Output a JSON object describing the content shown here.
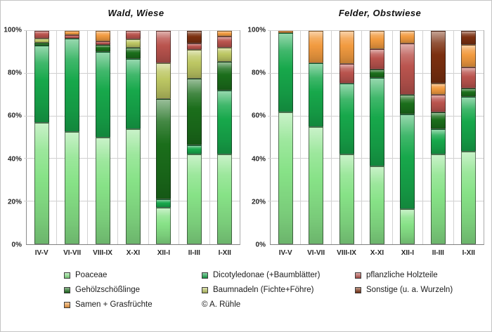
{
  "window": {
    "background": "#ffffff",
    "border_color": "#c4c4c4"
  },
  "colors": {
    "poaceae": "#87E287",
    "dicotyledonae": "#17A84B",
    "gehoelzschoesslinge": "#1B6E1B",
    "baumnadeln": "#BDC763",
    "holzteile": "#BA544E",
    "samen": "#F29B40",
    "sonstige": "#7C3010",
    "gridline": "#cfcfcf",
    "axis": "#8c8c8c",
    "text": "#262626"
  },
  "chart_data": [
    {
      "type": "bar",
      "stacked": true,
      "title": "Wald, Wiese",
      "categories": [
        "IV-V",
        "VI-VII",
        "VIII-IX",
        "X-XI",
        "XII-I",
        "II-III",
        "I-XII"
      ],
      "ylim": [
        0,
        100
      ],
      "yticks": [
        "0%",
        "20%",
        "40%",
        "60%",
        "80%",
        "100%"
      ],
      "grid": true,
      "legend_position": "bottom",
      "series": [
        {
          "name": "Poaceae",
          "color_key": "poaceae",
          "values": [
            57,
            52.5,
            50,
            54,
            17,
            42,
            42
          ]
        },
        {
          "name": "Dicotyledonae (+Baumblätter)",
          "color_key": "dicotyledonae",
          "values": [
            36,
            44,
            40,
            33,
            4,
            4.5,
            30
          ]
        },
        {
          "name": "Gehölzschößlinge",
          "color_key": "gehoelzschoesslinge",
          "values": [
            1.5,
            0,
            3.5,
            5,
            47,
            31,
            13.5
          ]
        },
        {
          "name": "Baumnadeln (Fichte+Föhre)",
          "color_key": "baumnadeln",
          "values": [
            2,
            0,
            0,
            4,
            17,
            13.5,
            6.5
          ]
        },
        {
          "name": "pflanzliche Holzteile",
          "color_key": "holzteile",
          "values": [
            3.5,
            1.5,
            1.5,
            4,
            15,
            3,
            5.5
          ]
        },
        {
          "name": "Samen + Grasfrüchte",
          "color_key": "samen",
          "values": [
            0,
            2,
            5,
            0,
            0,
            0,
            2.5
          ]
        },
        {
          "name": "Sonstige (u. a. Wurzeln)",
          "color_key": "sonstige",
          "values": [
            0,
            0,
            0,
            0,
            0,
            6,
            0
          ]
        }
      ]
    },
    {
      "type": "bar",
      "stacked": true,
      "title": "Felder, Obstwiese",
      "categories": [
        "IV-V",
        "VI-VII",
        "VIII-IX",
        "X-XI",
        "XII-I",
        "II-III",
        "I-XII"
      ],
      "ylim": [
        0,
        100
      ],
      "yticks": [
        "0%",
        "20%",
        "40%",
        "60%",
        "80%",
        "100%"
      ],
      "grid": true,
      "legend_position": "bottom",
      "series": [
        {
          "name": "Poaceae",
          "color_key": "poaceae",
          "values": [
            62,
            55,
            42,
            36.5,
            16.5,
            42,
            43.5
          ]
        },
        {
          "name": "Dicotyledonae (+Baumblätter)",
          "color_key": "dicotyledonae",
          "values": [
            37,
            30,
            33.5,
            41.5,
            44.5,
            12,
            25.5
          ]
        },
        {
          "name": "Gehölzschößlinge",
          "color_key": "gehoelzschoesslinge",
          "values": [
            0,
            0,
            0,
            4,
            9,
            8,
            4
          ]
        },
        {
          "name": "Baumnadeln (Fichte+Föhre)",
          "color_key": "baumnadeln",
          "values": [
            0,
            0,
            0,
            0,
            0,
            0,
            0
          ]
        },
        {
          "name": "pflanzliche Holzteile",
          "color_key": "holzteile",
          "values": [
            0,
            0,
            9,
            9.5,
            24,
            8,
            10
          ]
        },
        {
          "name": "Samen + Grasfrüchte",
          "color_key": "samen",
          "values": [
            1,
            15,
            15.5,
            8.5,
            6,
            5.5,
            10.5
          ]
        },
        {
          "name": "Sonstige (u. a. Wurzeln)",
          "color_key": "sonstige",
          "values": [
            0,
            0,
            0,
            0,
            0,
            24.5,
            6.5
          ]
        }
      ]
    }
  ],
  "legend": {
    "columns": [
      [
        {
          "label": "Poaceae",
          "color_key": "poaceae"
        },
        {
          "label": "Gehölzschößlinge",
          "color_key": "gehoelzschoesslinge"
        },
        {
          "label": "Samen + Grasfrüchte",
          "color_key": "samen"
        }
      ],
      [
        {
          "label": "Dicotyledonae (+Baumblätter)",
          "color_key": "dicotyledonae"
        },
        {
          "label": "Baumnadeln (Fichte+Föhre)",
          "color_key": "baumnadeln"
        },
        {
          "label": "© A. Rühle",
          "color_key": null,
          "is_credit": true
        }
      ],
      [
        {
          "label": "pflanzliche Holzteile",
          "color_key": "holzteile"
        },
        {
          "label": "Sonstige (u. a. Wurzeln)",
          "color_key": "sonstige"
        }
      ]
    ]
  }
}
